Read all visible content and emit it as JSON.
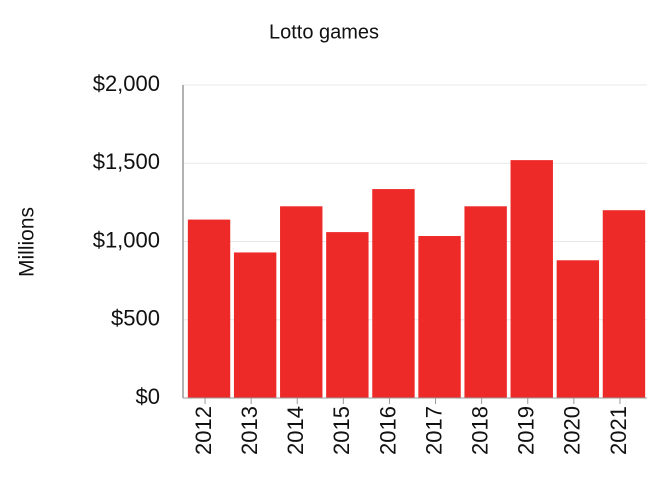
{
  "chart_data": {
    "type": "bar",
    "title": "Lotto games",
    "ylabel": "Millions",
    "categories": [
      "2012",
      "2013",
      "2014",
      "2015",
      "2016",
      "2017",
      "2018",
      "2019",
      "2020",
      "2021"
    ],
    "values": [
      1140,
      930,
      1225,
      1060,
      1335,
      1035,
      1225,
      1520,
      880,
      1200
    ],
    "color": "#ee2a29",
    "ylim": [
      0,
      2000
    ],
    "yticks": [
      {
        "value": 0,
        "label": "$0"
      },
      {
        "value": 500,
        "label": "$500"
      },
      {
        "value": 1000,
        "label": "$1,000"
      },
      {
        "value": 1500,
        "label": "$1,500"
      },
      {
        "value": 2000,
        "label": "$2,000"
      }
    ],
    "grid": true
  }
}
